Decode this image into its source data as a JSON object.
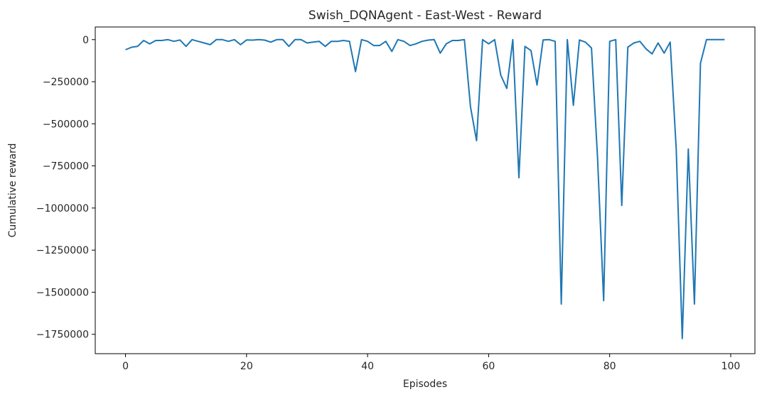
{
  "chart_data": {
    "type": "line",
    "title": "Swish_DQNAgent - East-West - Reward",
    "xlabel": "Episodes",
    "ylabel": "Cumulative reward",
    "xlim": [
      -5,
      104
    ],
    "ylim": [
      -1865000,
      75000
    ],
    "xticks": [
      0,
      20,
      40,
      60,
      80,
      100
    ],
    "yticks": [
      0,
      -250000,
      -500000,
      -750000,
      -1000000,
      -1250000,
      -1500000,
      -1750000
    ],
    "xtick_labels": [
      "0",
      "20",
      "40",
      "60",
      "80",
      "100"
    ],
    "ytick_labels": [
      "0",
      "−250000",
      "−500000",
      "−750000",
      "−1000000",
      "−1250000",
      "−1500000",
      "−1750000"
    ],
    "grid": false,
    "color": "#1f77b4",
    "series": [
      {
        "x": [
          0,
          1,
          2,
          3,
          4,
          5,
          6,
          7,
          8,
          9,
          10,
          11,
          12,
          13,
          14,
          15,
          16,
          17,
          18,
          19,
          20,
          21,
          22,
          23,
          24,
          25,
          26,
          27,
          28,
          29,
          30,
          31,
          32,
          33,
          34,
          35,
          36,
          37,
          38,
          39,
          40,
          41,
          42,
          43,
          44,
          45,
          46,
          47,
          48,
          49,
          50,
          51,
          52,
          53,
          54,
          55,
          56,
          57,
          58,
          59,
          60,
          61,
          62,
          63,
          64,
          65,
          66,
          67,
          68,
          69,
          70,
          71,
          72,
          73,
          74,
          75,
          76,
          77,
          78,
          79,
          80,
          81,
          82,
          83,
          84,
          85,
          86,
          87,
          88,
          89,
          90,
          91,
          92,
          93,
          94,
          95,
          96,
          97,
          98,
          99
        ],
        "values": [
          -60000,
          -45000,
          -40000,
          -5000,
          -25000,
          -5000,
          -5000,
          0,
          -10000,
          -2000,
          -40000,
          0,
          -10000,
          -20000,
          -30000,
          0,
          0,
          -10000,
          0,
          -30000,
          -2000,
          -3000,
          0,
          -3000,
          -15000,
          0,
          0,
          -40000,
          0,
          0,
          -20000,
          -15000,
          -10000,
          -40000,
          -10000,
          -10000,
          -5000,
          -10000,
          -190000,
          0,
          -10000,
          -35000,
          -35000,
          -10000,
          -70000,
          0,
          -10000,
          -35000,
          -25000,
          -10000,
          -3000,
          0,
          -80000,
          -25000,
          -5000,
          -5000,
          0,
          -400000,
          -600000,
          0,
          -25000,
          0,
          -210000,
          -290000,
          0,
          -820000,
          -40000,
          -65000,
          -270000,
          -2000,
          0,
          -10000,
          -1570000,
          0,
          -390000,
          -2000,
          -15000,
          -50000,
          -700000,
          -1550000,
          -10000,
          0,
          -985000,
          -45000,
          -20000,
          -10000,
          -55000,
          -85000,
          -20000,
          -80000,
          -15000,
          -650000,
          -1775000,
          -650000,
          -1570000,
          -140000,
          0,
          0,
          0,
          0
        ]
      }
    ]
  }
}
